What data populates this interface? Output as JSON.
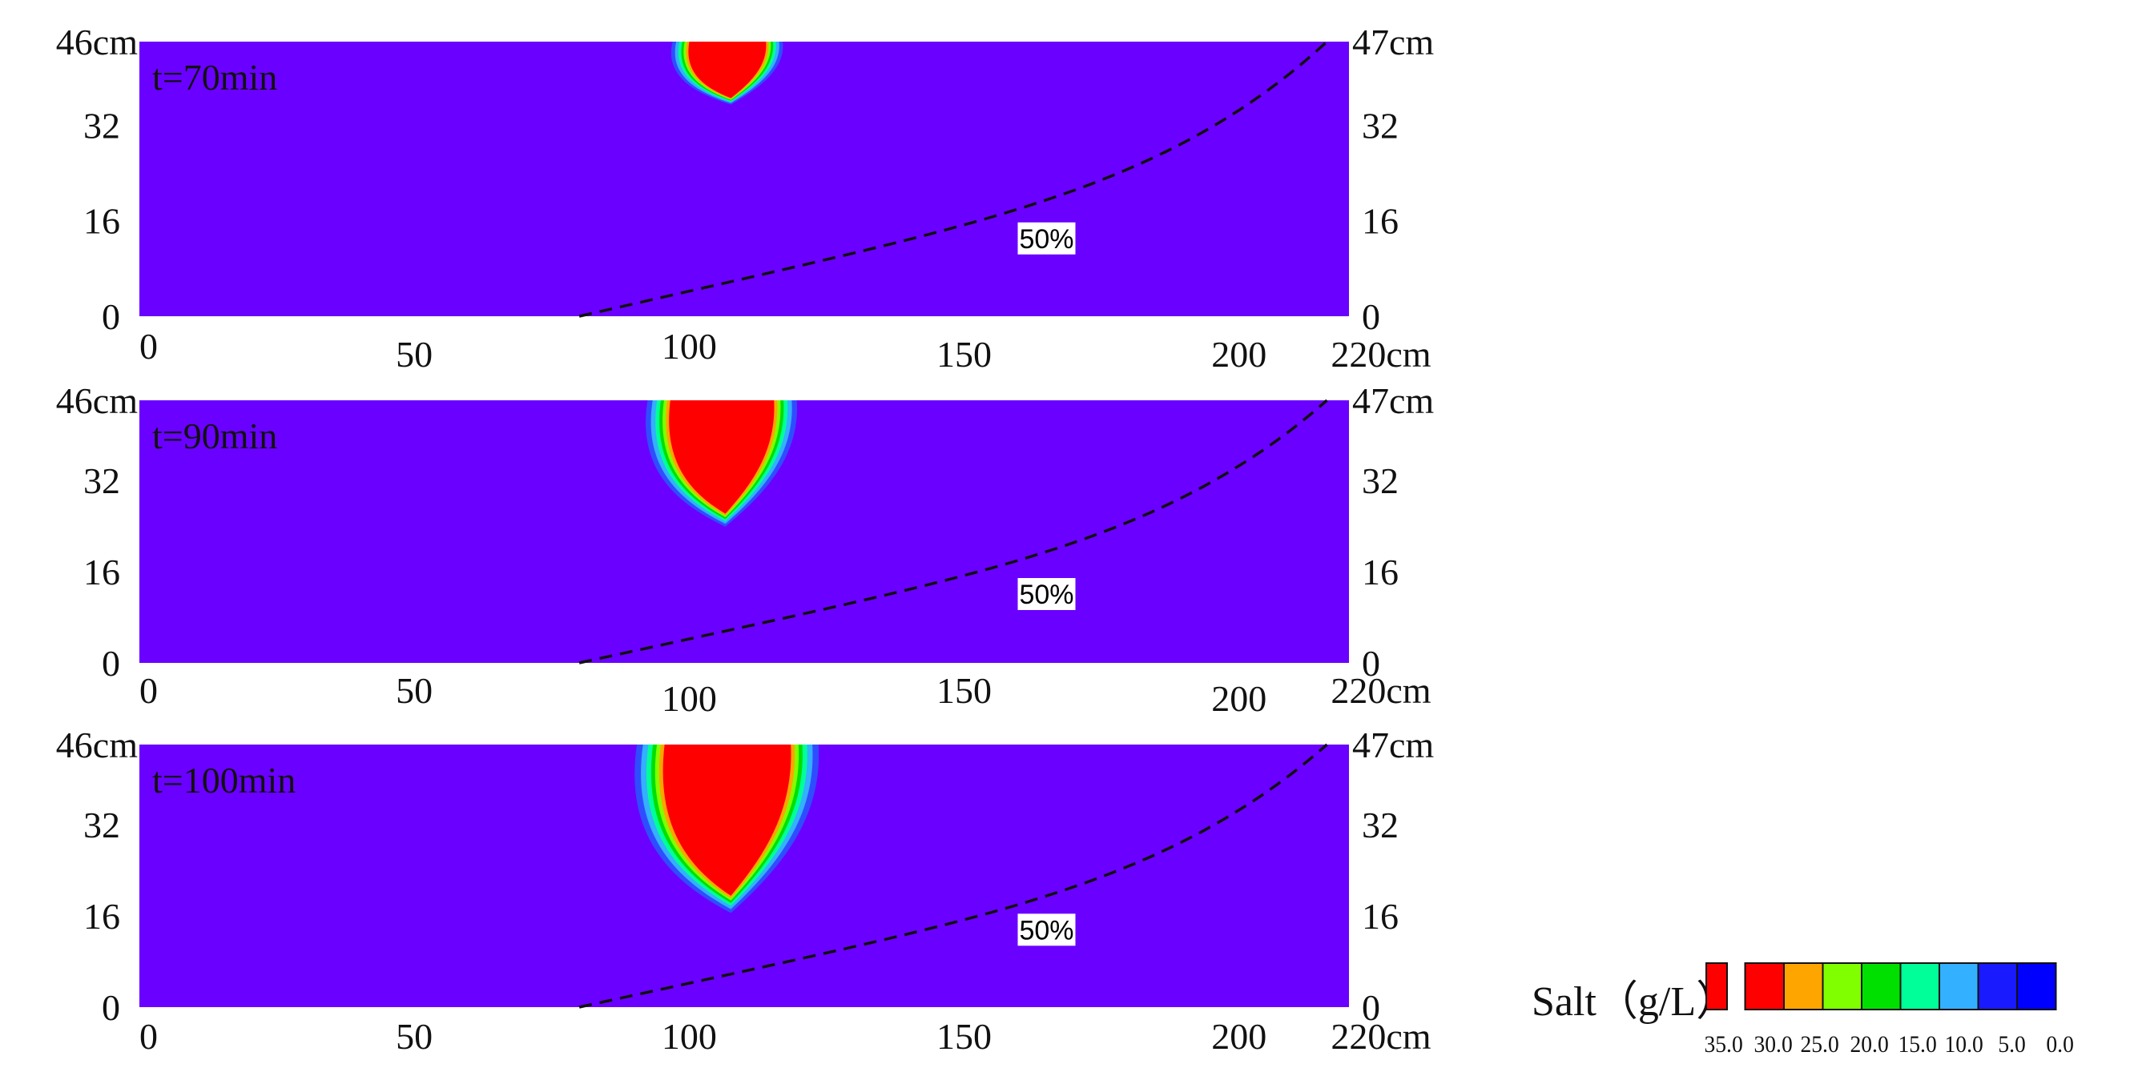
{
  "chart_data": {
    "type": "heatmap",
    "x_range": [
      0,
      220
    ],
    "x_ticks": [
      "0",
      "50",
      "100",
      "150",
      "200",
      "220cm"
    ],
    "dashed_line_label": "50%",
    "panels": [
      {
        "time_label": "t=70min",
        "y_ticks_left": [
          "46cm",
          "32",
          "16",
          "0"
        ],
        "y_ticks_right": [
          "47cm",
          "32",
          "16",
          "0"
        ],
        "plume": {
          "x_center": 107,
          "top_width": 17,
          "bottom_y": 36
        }
      },
      {
        "time_label": "t=90min",
        "y_ticks_left": [
          "46cm",
          "32",
          "16",
          "0"
        ],
        "y_ticks_right": [
          "47cm",
          "32",
          "16",
          "0"
        ],
        "plume": {
          "x_center": 106,
          "top_width": 23,
          "bottom_y": 25
        }
      },
      {
        "time_label": "t=100min",
        "y_ticks_left": [
          "46cm",
          "32",
          "16",
          "0"
        ],
        "y_ticks_right": [
          "47cm",
          "32",
          "16",
          "0"
        ],
        "plume": {
          "x_center": 107,
          "top_width": 28,
          "bottom_y": 18
        }
      }
    ],
    "colorbar": {
      "title": "Salt（g/L）",
      "colors": [
        "#ff0000",
        "#ff0000",
        "#ffa500",
        "#80ff00",
        "#00e000",
        "#00ff99",
        "#33b0ff",
        "#1a1aff",
        "#0000ff"
      ],
      "tick_labels": [
        "35.0",
        "30.0",
        "25.0",
        "20.0",
        "15.0",
        "10.0",
        "5.0",
        "0.0"
      ]
    },
    "background_color": "#6a00ff"
  }
}
